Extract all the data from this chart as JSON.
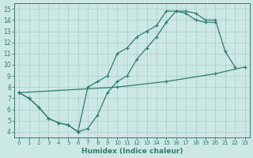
{
  "xlabel": "Humidex (Indice chaleur)",
  "xlim": [
    -0.5,
    23.5
  ],
  "ylim": [
    3.5,
    15.5
  ],
  "xticks": [
    0,
    1,
    2,
    3,
    4,
    5,
    6,
    7,
    8,
    9,
    10,
    11,
    12,
    13,
    14,
    15,
    16,
    17,
    18,
    19,
    20,
    21,
    22,
    23
  ],
  "yticks": [
    4,
    5,
    6,
    7,
    8,
    9,
    10,
    11,
    12,
    13,
    14,
    15
  ],
  "line_color": "#2e7d6e",
  "bg_color": "#cce8e5",
  "grid_color": "#aacfcc",
  "line1_x": [
    0,
    1,
    2,
    3,
    4,
    5,
    6,
    7,
    8,
    9,
    10,
    11,
    12,
    13,
    14,
    15,
    16,
    17,
    18,
    19,
    20,
    21,
    22
  ],
  "line1_y": [
    7.5,
    7.0,
    6.2,
    5.2,
    4.8,
    4.6,
    4.0,
    4.3,
    5.5,
    7.5,
    8.5,
    9.0,
    10.5,
    11.5,
    12.5,
    13.8,
    14.8,
    14.8,
    14.6,
    14.0,
    14.0,
    11.2,
    9.8
  ],
  "line2_x": [
    0,
    1,
    2,
    3,
    4,
    5,
    6,
    7,
    8,
    9,
    10,
    11,
    12,
    13,
    14,
    15,
    16,
    17,
    18,
    19,
    20
  ],
  "line2_y": [
    7.5,
    7.0,
    6.2,
    5.2,
    4.8,
    4.6,
    4.0,
    8.0,
    8.5,
    9.0,
    11.0,
    11.5,
    12.5,
    13.0,
    13.5,
    14.8,
    14.8,
    14.6,
    14.0,
    13.8,
    13.8
  ],
  "line3_x": [
    0,
    10,
    15,
    20,
    23
  ],
  "line3_y": [
    7.5,
    8.0,
    8.5,
    9.2,
    9.8
  ]
}
